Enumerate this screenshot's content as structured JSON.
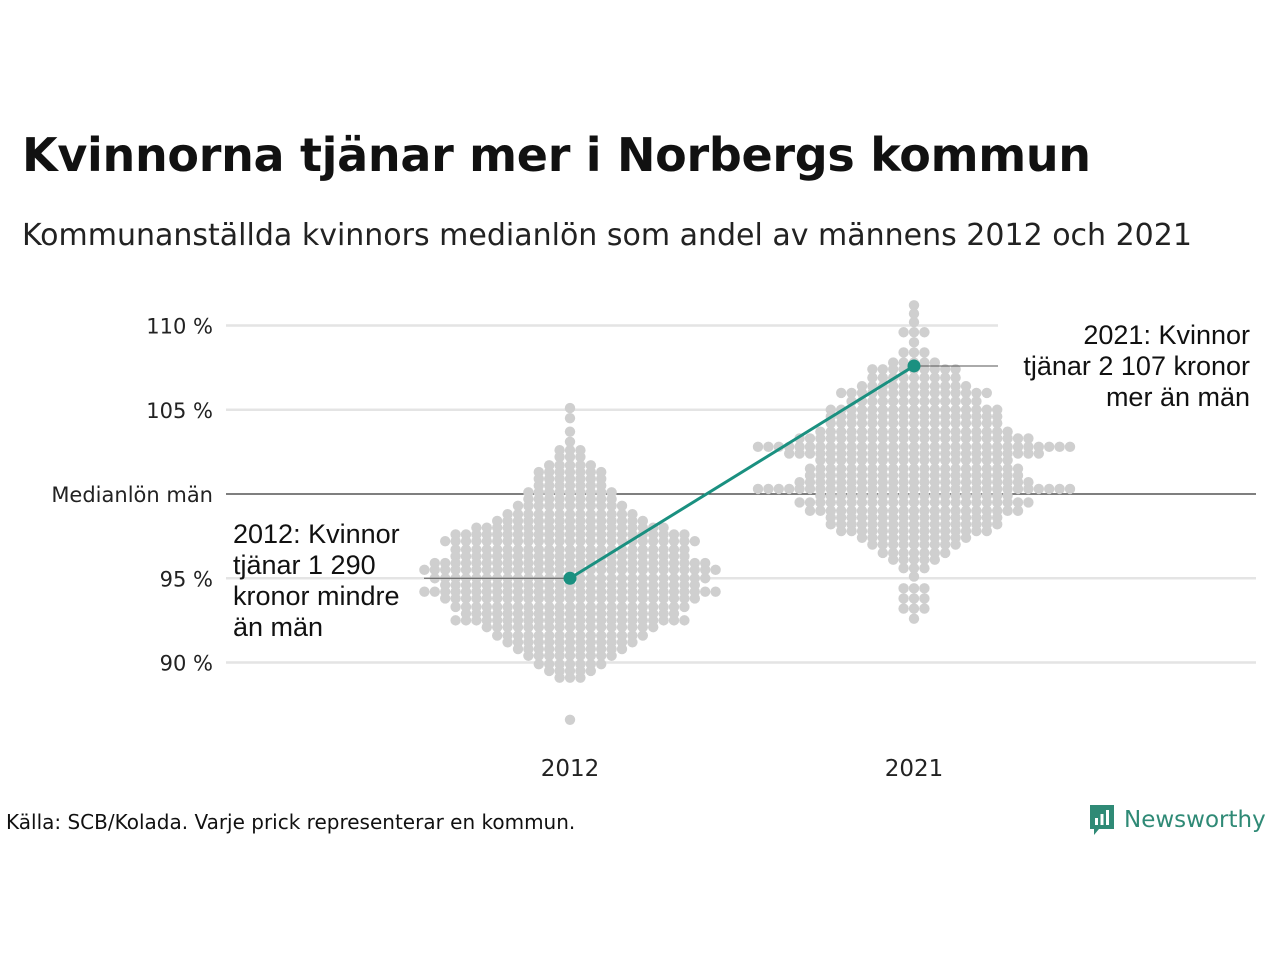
{
  "title": "Kvinnorna tjänar mer i Norbergs kommun",
  "subtitle": "Kommunanställda kvinnors medianlön som andel av männens 2012 och 2021",
  "source": "Källa: SCB/Kolada. Varje prick representerar en kommun.",
  "brand": {
    "name": "Newsworthy",
    "icon": "newsworthy-logo-icon",
    "color": "#2f8a76"
  },
  "colors": {
    "highlight": "#1a9080",
    "dots": "#cfcfcf",
    "grid": "#e4e4e4",
    "baseline": "#333333"
  },
  "chart_data": {
    "type": "scatter",
    "subtype": "beeswarm",
    "categories": [
      "2012",
      "2021"
    ],
    "ylim": [
      86,
      111
    ],
    "yticks": [
      {
        "value": 110,
        "label": "110 %"
      },
      {
        "value": 105,
        "label": "105 %"
      },
      {
        "value": 100,
        "label": "Medianlön män"
      },
      {
        "value": 95,
        "label": "95 %"
      },
      {
        "value": 90,
        "label": "90 %"
      }
    ],
    "baseline": 100,
    "grid": true,
    "highlight": {
      "values": [
        {
          "x": "2012",
          "y": 95.0
        },
        {
          "x": "2021",
          "y": 107.6
        }
      ]
    },
    "annotations": {
      "2012": [
        "2012: Kvinnor",
        "tjänar 1 290",
        "kronor mindre",
        "än män"
      ],
      "2021": [
        "2021: Kvinnor",
        "tjänar 2 107 kronor",
        "mer än män"
      ]
    },
    "swarm_2012": {
      "rows": [
        [
          105.1,
          1
        ],
        [
          104.5,
          1
        ],
        [
          103.7,
          1
        ],
        [
          103.1,
          1
        ],
        [
          102.6,
          3
        ],
        [
          102.2,
          3
        ],
        [
          101.7,
          5
        ],
        [
          101.3,
          7
        ],
        [
          100.9,
          7
        ],
        [
          100.5,
          7
        ],
        [
          100.1,
          9
        ],
        [
          99.7,
          9
        ],
        [
          99.3,
          11
        ],
        [
          98.8,
          13
        ],
        [
          98.4,
          15
        ],
        [
          98.0,
          19
        ],
        [
          97.6,
          23
        ],
        [
          97.2,
          25
        ],
        [
          96.7,
          23
        ],
        [
          96.3,
          23
        ],
        [
          95.9,
          27
        ],
        [
          95.5,
          29
        ],
        [
          95.0,
          27
        ],
        [
          94.6,
          25
        ],
        [
          94.2,
          29
        ],
        [
          93.8,
          25
        ],
        [
          93.3,
          23
        ],
        [
          92.9,
          21
        ],
        [
          92.5,
          23
        ],
        [
          92.1,
          17
        ],
        [
          91.6,
          15
        ],
        [
          91.2,
          13
        ],
        [
          90.8,
          11
        ],
        [
          90.4,
          9
        ],
        [
          89.9,
          7
        ],
        [
          89.5,
          5
        ],
        [
          89.1,
          3
        ],
        [
          86.6,
          1
        ]
      ]
    },
    "swarm_2021": {
      "rows": [
        [
          111.2,
          1
        ],
        [
          110.7,
          1
        ],
        [
          110.2,
          1
        ],
        [
          109.6,
          3
        ],
        [
          109.0,
          1
        ],
        [
          108.4,
          3
        ],
        [
          107.8,
          5
        ],
        [
          107.4,
          9
        ],
        [
          106.9,
          9
        ],
        [
          106.4,
          11
        ],
        [
          106.0,
          15
        ],
        [
          105.5,
          13
        ],
        [
          105.0,
          17
        ],
        [
          104.6,
          17
        ],
        [
          104.2,
          17
        ],
        [
          103.7,
          19
        ],
        [
          103.3,
          23
        ],
        [
          102.8,
          31
        ],
        [
          102.4,
          25
        ],
        [
          102.0,
          19
        ],
        [
          101.5,
          21
        ],
        [
          101.1,
          21
        ],
        [
          100.7,
          23
        ],
        [
          100.3,
          31
        ],
        [
          99.9,
          19
        ],
        [
          99.5,
          23
        ],
        [
          99.0,
          21
        ],
        [
          98.6,
          17
        ],
        [
          98.2,
          17
        ],
        [
          97.8,
          15
        ],
        [
          97.4,
          11
        ],
        [
          97.0,
          9
        ],
        [
          96.5,
          7
        ],
        [
          96.1,
          5
        ],
        [
          95.6,
          3
        ],
        [
          95.1,
          1
        ],
        [
          94.4,
          3
        ],
        [
          93.8,
          3
        ],
        [
          93.2,
          3
        ],
        [
          92.6,
          1
        ]
      ]
    }
  }
}
